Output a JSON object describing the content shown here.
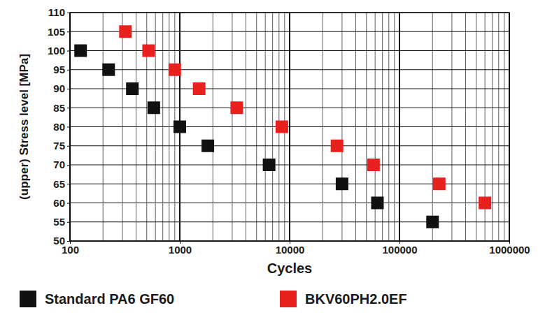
{
  "chart_data": {
    "type": "scatter",
    "x_label": "Cycles",
    "y_label": "(upper) Stress level [MPa]",
    "log": "x",
    "grid": true,
    "legend": "bottom",
    "xlim": [
      100,
      1000000
    ],
    "xticks": [
      100,
      1000,
      10000,
      100000,
      1000000
    ],
    "ylim": [
      50,
      110
    ],
    "yticks": [
      50,
      55,
      60,
      65,
      70,
      75,
      80,
      85,
      90,
      95,
      100,
      105,
      110
    ],
    "series": [
      {
        "name": "Standard PA6 GF60",
        "color": "#111111",
        "marker": "square",
        "x": [
          125,
          225,
          370,
          580,
          1000,
          1800,
          6500,
          30000,
          63000,
          200000
        ],
        "values": [
          100,
          95,
          90,
          85,
          80,
          75,
          70,
          65,
          60,
          55
        ]
      },
      {
        "name": "BKV60PH2.0EF",
        "color": "#e8201e",
        "marker": "square",
        "x": [
          320,
          520,
          900,
          1500,
          3300,
          8500,
          27000,
          58000,
          230000,
          600000
        ],
        "values": [
          105,
          100,
          95,
          90,
          85,
          80,
          75,
          70,
          65,
          60
        ]
      }
    ]
  }
}
